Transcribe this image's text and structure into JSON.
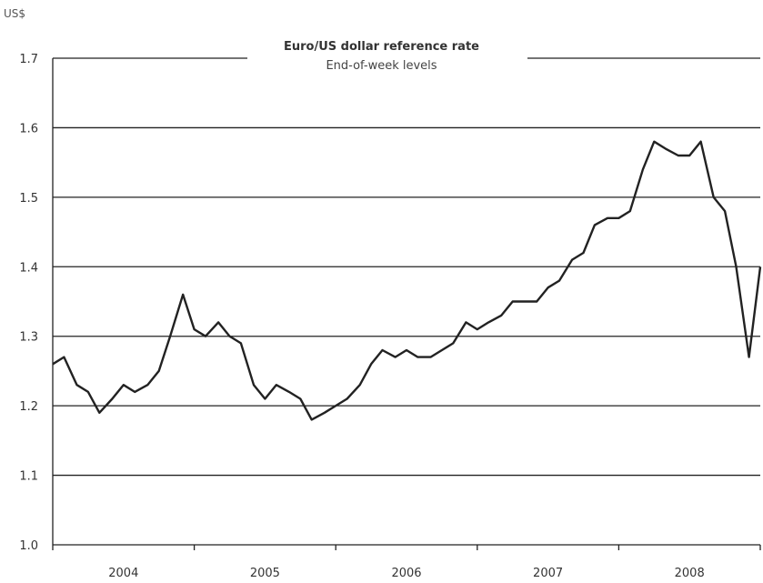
{
  "chart_data": {
    "type": "line",
    "title": "Euro/US dollar reference rate",
    "subtitle": "End-of-week levels",
    "ylabel": "US$",
    "xlabel": "",
    "ylim": [
      1.0,
      1.7
    ],
    "yticks": [
      "1.0",
      "1.1",
      "1.2",
      "1.3",
      "1.4",
      "1.5",
      "1.6",
      "1.7"
    ],
    "xlim": [
      2004.0,
      2009.0
    ],
    "xticks": [
      "2004",
      "2005",
      "2006",
      "2007",
      "2008"
    ],
    "grid": "horizontal",
    "legend": "none",
    "line_color": "#222222",
    "series": [
      {
        "x": [
          2004.0,
          2004.08,
          2004.17,
          2004.25,
          2004.33,
          2004.42,
          2004.5,
          2004.58,
          2004.67,
          2004.75,
          2004.83,
          2004.92,
          2005.0,
          2005.08,
          2005.17,
          2005.25,
          2005.33,
          2005.42,
          2005.5,
          2005.58,
          2005.67,
          2005.75,
          2005.83,
          2005.92,
          2006.0,
          2006.08,
          2006.17,
          2006.25,
          2006.33,
          2006.42,
          2006.5,
          2006.58,
          2006.67,
          2006.75,
          2006.83,
          2006.92,
          2007.0,
          2007.08,
          2007.17,
          2007.25,
          2007.33,
          2007.42,
          2007.5,
          2007.58,
          2007.67,
          2007.75,
          2007.83,
          2007.92,
          2008.0,
          2008.08,
          2008.17,
          2008.25,
          2008.33,
          2008.42,
          2008.5,
          2008.58,
          2008.67,
          2008.75,
          2008.83,
          2008.92,
          2009.0
        ],
        "y": [
          1.26,
          1.27,
          1.23,
          1.22,
          1.19,
          1.21,
          1.23,
          1.22,
          1.23,
          1.25,
          1.3,
          1.36,
          1.31,
          1.3,
          1.32,
          1.3,
          1.29,
          1.23,
          1.21,
          1.23,
          1.22,
          1.21,
          1.18,
          1.19,
          1.2,
          1.21,
          1.23,
          1.26,
          1.28,
          1.27,
          1.28,
          1.27,
          1.27,
          1.28,
          1.29,
          1.32,
          1.31,
          1.32,
          1.33,
          1.35,
          1.35,
          1.35,
          1.37,
          1.38,
          1.41,
          1.42,
          1.46,
          1.47,
          1.47,
          1.48,
          1.54,
          1.58,
          1.57,
          1.56,
          1.56,
          1.58,
          1.5,
          1.48,
          1.4,
          1.27,
          1.4
        ]
      }
    ]
  }
}
